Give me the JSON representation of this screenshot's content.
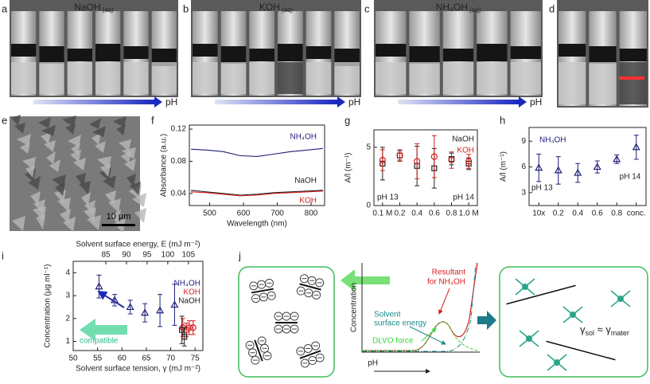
{
  "panel_letters": [
    "a",
    "b",
    "c",
    "d",
    "e",
    "f",
    "g",
    "h",
    "i",
    "j"
  ],
  "photos": [
    {
      "title": "NaOH",
      "subscript": "(aq)",
      "arrow_label": "pH"
    },
    {
      "title": "KOH",
      "subscript": "(aq)",
      "arrow_label": "pH"
    },
    {
      "title": "NH₄OH",
      "subscript": "(aq)",
      "arrow_label": "pH"
    }
  ],
  "sem": {
    "scale_bar": "10 µm"
  },
  "chart_data": [
    {
      "type": "line",
      "xlabel": "Wavelength (nm)",
      "ylabel": "Absorbance (a.u.)",
      "x": [
        445,
        490,
        540,
        590,
        640,
        690,
        740,
        790,
        835
      ],
      "xlim": [
        440,
        840
      ],
      "xticks": [
        500,
        600,
        700,
        800
      ],
      "ylim": [
        0.025,
        0.125
      ],
      "yticks": [
        0.04,
        0.08,
        0.12
      ],
      "series": [
        {
          "name": "NH₄OH",
          "color": "#1f1f7a",
          "values": [
            0.095,
            0.094,
            0.092,
            0.087,
            0.086,
            0.089,
            0.092,
            0.094,
            0.096
          ]
        },
        {
          "name": "NaOH",
          "color": "#222222",
          "values": [
            0.044,
            0.042,
            0.04,
            0.038,
            0.039,
            0.041,
            0.042,
            0.043,
            0.044
          ]
        },
        {
          "name": "KOH",
          "color": "#d42020",
          "values": [
            0.042,
            0.041,
            0.039,
            0.037,
            0.038,
            0.04,
            0.041,
            0.042,
            0.043
          ]
        }
      ]
    },
    {
      "type": "scatter",
      "ylabel": "A/l (m⁻¹)",
      "categories": [
        "0.1 M",
        "0.2",
        "0.4",
        "0.6",
        "0.8",
        "1.0 M"
      ],
      "ylim": [
        0,
        6.5
      ],
      "yticks": [
        0,
        5
      ],
      "annotations": [
        "pH 13",
        "pH 14"
      ],
      "series": [
        {
          "name": "NaOH",
          "color": "#222222",
          "marker": "square",
          "values": [
            3.6,
            4.3,
            3.4,
            3.2,
            4.0,
            3.6
          ],
          "errors": [
            1.4,
            0.4,
            1.7,
            1.7,
            0.5,
            0.5
          ]
        },
        {
          "name": "KOH",
          "color": "#d42020",
          "marker": "circle",
          "values": [
            3.9,
            4.3,
            3.8,
            4.2,
            3.9,
            3.8
          ],
          "errors": [
            0.9,
            0.5,
            1.5,
            1.8,
            0.7,
            0.6
          ]
        }
      ]
    },
    {
      "type": "scatter",
      "ylabel": "A/l (m⁻¹)",
      "categories": [
        "10x",
        "0.2",
        "0.4",
        "0.6",
        "0.8",
        "conc."
      ],
      "ylim": [
        1.5,
        10.6
      ],
      "yticks": [
        3,
        6,
        9
      ],
      "annotations": [
        "pH 13",
        "pH 14"
      ],
      "series": [
        {
          "name": "NH₄OH",
          "color": "#1f1f7a",
          "marker": "triangle",
          "values": [
            5.9,
            5.6,
            5.3,
            6.0,
            6.9,
            8.3
          ],
          "errors": [
            1.6,
            1.6,
            1.1,
            0.7,
            0.5,
            1.4
          ]
        }
      ]
    },
    {
      "type": "scatter",
      "xlabel": "Solvent surface tension, γ (mJ m⁻²)",
      "x2label": "Solvent surface energy, E (mJ m⁻²)",
      "ylabel": "Concentration (µg ml⁻¹)",
      "xlim": [
        50,
        76.6
      ],
      "xticks": [
        50,
        55,
        60,
        65,
        70,
        75
      ],
      "x2lim": [
        77.1,
        108.5
      ],
      "x2ticks": [
        85,
        90,
        95,
        100,
        105
      ],
      "ylim": [
        0.6,
        4.5
      ],
      "yticks": [
        1,
        2,
        3,
        4
      ],
      "annotations": [
        "compatible"
      ],
      "annotation_color": "#2fb88a",
      "series": [
        {
          "name": "NH₄OH",
          "color": "#1f1f7a",
          "marker": "triangle",
          "x": [
            55.3,
            58.5,
            61.7,
            64.7,
            67.8,
            70.8
          ],
          "values": [
            3.4,
            2.8,
            2.5,
            2.25,
            2.35,
            2.6
          ],
          "errors": [
            0.5,
            0.25,
            0.3,
            0.4,
            0.7,
            0.9
          ]
        },
        {
          "name": "KOH",
          "color": "#d42020",
          "marker": "circle",
          "x": [
            72.5,
            73.2,
            73.8,
            74.6
          ],
          "values": [
            1.6,
            1.5,
            1.6,
            1.6
          ],
          "errors": [
            0.4,
            0.3,
            0.3,
            0.3
          ]
        },
        {
          "name": "NaOH",
          "color": "#222222",
          "marker": "square",
          "x": [
            72.3,
            72.8
          ],
          "values": [
            1.5,
            1.2
          ],
          "errors": [
            0.6,
            0.4
          ]
        }
      ]
    }
  ],
  "diagram": {
    "resultant": [
      "Resultant",
      "for NH₄OH"
    ],
    "solvent": [
      "Solvent",
      "surface energy"
    ],
    "dlvo": "DLVO force",
    "ylabel": "Concentration",
    "xlabel": "pH",
    "formula": [
      "γ",
      "sol",
      " ≈ γ",
      "mater"
    ]
  }
}
